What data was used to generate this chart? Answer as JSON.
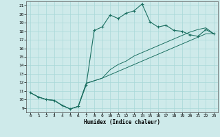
{
  "xlabel": "Humidex (Indice chaleur)",
  "background_color": "#ceeaea",
  "grid_color": "#a8d8d8",
  "line_color": "#1a6e60",
  "xlim": [
    -0.5,
    23.5
  ],
  "ylim": [
    8.5,
    21.5
  ],
  "xticks": [
    0,
    1,
    2,
    3,
    4,
    5,
    6,
    7,
    8,
    9,
    10,
    11,
    12,
    13,
    14,
    15,
    16,
    17,
    18,
    19,
    20,
    21,
    22,
    23
  ],
  "yticks": [
    9,
    10,
    11,
    12,
    13,
    14,
    15,
    16,
    17,
    18,
    19,
    20,
    21
  ],
  "series1_x": [
    0,
    1,
    2,
    3,
    4,
    5,
    6,
    7,
    8,
    9,
    10,
    11,
    12,
    13,
    14,
    15,
    16,
    17,
    18,
    19,
    20,
    21,
    22,
    23
  ],
  "series1_y": [
    10.8,
    10.3,
    10.0,
    9.9,
    9.3,
    8.9,
    9.2,
    11.7,
    18.1,
    18.5,
    19.9,
    19.5,
    20.1,
    20.4,
    21.2,
    19.1,
    18.5,
    18.7,
    18.1,
    18.0,
    17.6,
    17.4,
    18.2,
    17.7
  ],
  "series2_x": [
    0,
    1,
    2,
    3,
    4,
    5,
    6,
    7,
    8,
    9,
    10,
    11,
    12,
    13,
    14,
    15,
    16,
    17,
    18,
    19,
    20,
    21,
    22,
    23
  ],
  "series2_y": [
    10.8,
    10.3,
    10.0,
    9.9,
    9.3,
    8.9,
    9.2,
    11.9,
    12.2,
    12.5,
    12.9,
    13.3,
    13.7,
    14.1,
    14.5,
    14.9,
    15.3,
    15.7,
    16.1,
    16.5,
    16.9,
    17.3,
    17.7,
    17.7
  ],
  "series3_x": [
    0,
    1,
    2,
    3,
    4,
    5,
    6,
    7,
    8,
    9,
    10,
    11,
    12,
    13,
    14,
    15,
    16,
    17,
    18,
    19,
    20,
    21,
    22,
    23
  ],
  "series3_y": [
    10.8,
    10.3,
    10.0,
    9.9,
    9.3,
    8.9,
    9.2,
    11.9,
    12.2,
    12.5,
    13.5,
    14.1,
    14.5,
    15.1,
    15.5,
    15.9,
    16.3,
    16.7,
    17.1,
    17.5,
    17.9,
    18.2,
    18.4,
    17.7
  ]
}
